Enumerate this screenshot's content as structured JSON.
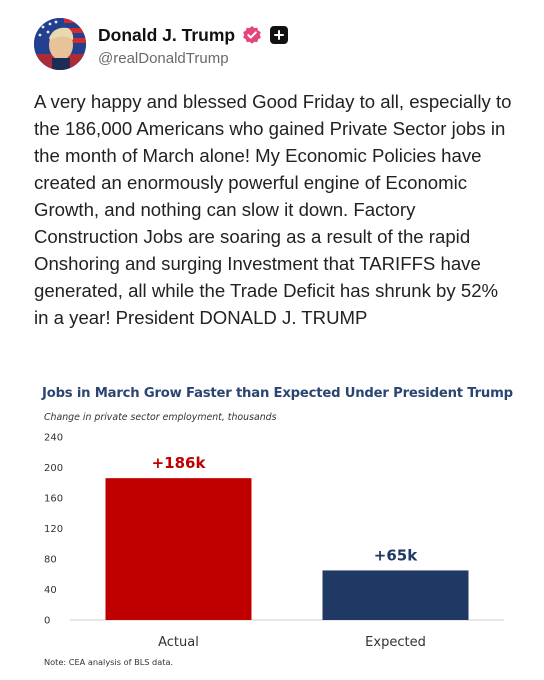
{
  "post": {
    "display_name": "Donald J. Trump",
    "handle": "@realDonaldTrump",
    "verified_icon": "verified-badge-icon",
    "plus_icon": "plus-badge-icon",
    "text": "A very happy and blessed Good Friday to all, especially to the 186,000 Americans who gained Private Sector jobs in the month of March alone! My Economic Policies have created an enormously powerful engine of Economic Growth, and nothing can slow it down. Factory Construction Jobs are soaring as a result of the rapid Onshoring and surging Investment that TARIFFS have generated, all while the Trade Deficit has shrunk by 52% in a year! President DONALD J. TRUMP"
  },
  "colors": {
    "verified": "#e5457a",
    "actual_bar": "#c00000",
    "expected_bar": "#1f3864",
    "title": "#2b4572"
  },
  "chart_data": {
    "type": "bar",
    "title": "Jobs in March Grow Faster than Expected Under President Trump",
    "subtitle": "Change in private sector employment,  thousands",
    "note": "Note: CEA analysis of BLS data.",
    "categories": [
      "Actual",
      "Expected"
    ],
    "values": [
      186,
      65
    ],
    "data_labels": [
      "+186k",
      "+65k"
    ],
    "bar_colors": [
      "#c00000",
      "#1f3864"
    ],
    "label_colors": [
      "#c00000",
      "#1f3864"
    ],
    "yticks": [
      0,
      40,
      80,
      120,
      160,
      200,
      240
    ],
    "ylim": [
      0,
      240
    ],
    "grid": false,
    "legend": "none"
  }
}
